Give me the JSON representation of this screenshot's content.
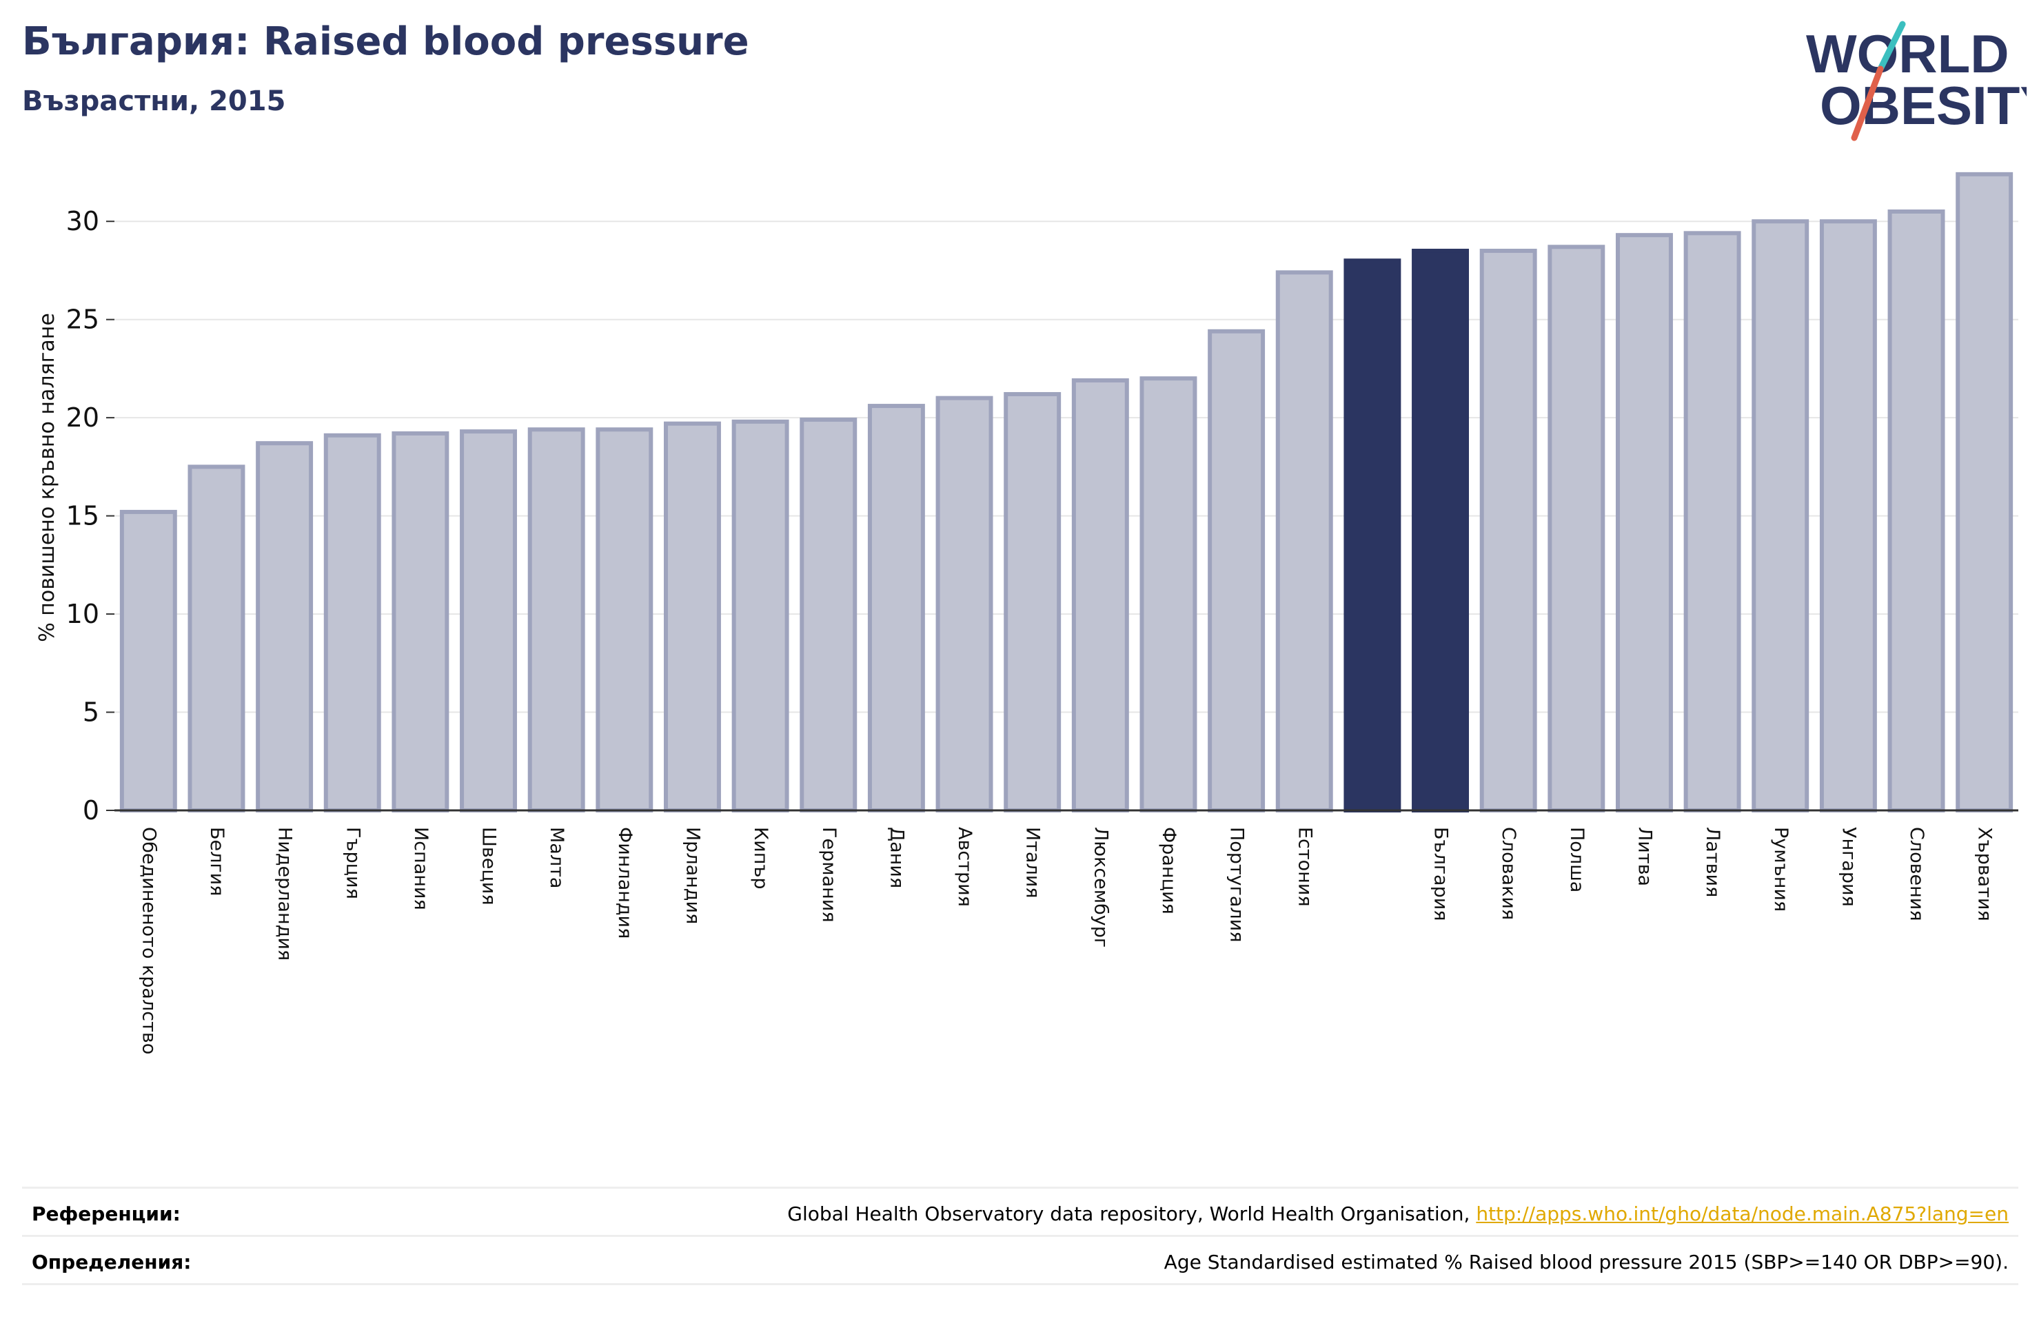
{
  "header": {
    "title": "България: Raised blood pressure",
    "subtitle": "Възрастни, 2015"
  },
  "logo": {
    "line1": "WORLD",
    "line2": "OBESITY",
    "text_color": "#2b3561",
    "slash_color_top": "#3bbfbf",
    "slash_color_bottom": "#e0604a"
  },
  "chart_data": {
    "type": "bar",
    "ylabel": "% повишено кръвно налягане",
    "ylim": [
      0,
      32.5
    ],
    "yticks": [
      0,
      5,
      10,
      15,
      20,
      25,
      30
    ],
    "grid": true,
    "colors": {
      "default_fill": "#c0c3d2",
      "default_stroke": "#9ea3bd",
      "highlight": "#2b3561"
    },
    "categories": [
      "Обединеното кралство",
      "Белгия",
      "Нидерландия",
      "Гърция",
      "Испания",
      "Швеция",
      "Малта",
      "Финландия",
      "Ирландия",
      "Кипър",
      "Германия",
      "Дания",
      "Австрия",
      "Италия",
      "Люксембург",
      "Франция",
      "Португалия",
      "Естония",
      "",
      "България",
      "Словакия",
      "Полша",
      "Литва",
      "Латвия",
      "Румъния",
      "Унгария",
      "Словения",
      "Хърватия"
    ],
    "values": [
      15.2,
      17.5,
      18.7,
      19.1,
      19.2,
      19.3,
      19.4,
      19.4,
      19.7,
      19.8,
      19.9,
      20.6,
      21.0,
      21.2,
      21.9,
      22.0,
      24.4,
      27.4,
      28.0,
      28.5,
      28.5,
      28.7,
      29.3,
      29.4,
      30.0,
      30.0,
      30.5,
      32.4
    ],
    "highlighted": [
      18,
      19
    ]
  },
  "footer": {
    "references_label": "Референции:",
    "references_text": "Global Health Observatory data repository, World Health Organisation,",
    "references_link": "http://apps.who.int/gho/data/node.main.A875?lang=en",
    "definitions_label": "Определения:",
    "definitions_text": "Age Standardised estimated % Raised blood pressure 2015 (SBP>=140 OR DBP>=90)."
  }
}
